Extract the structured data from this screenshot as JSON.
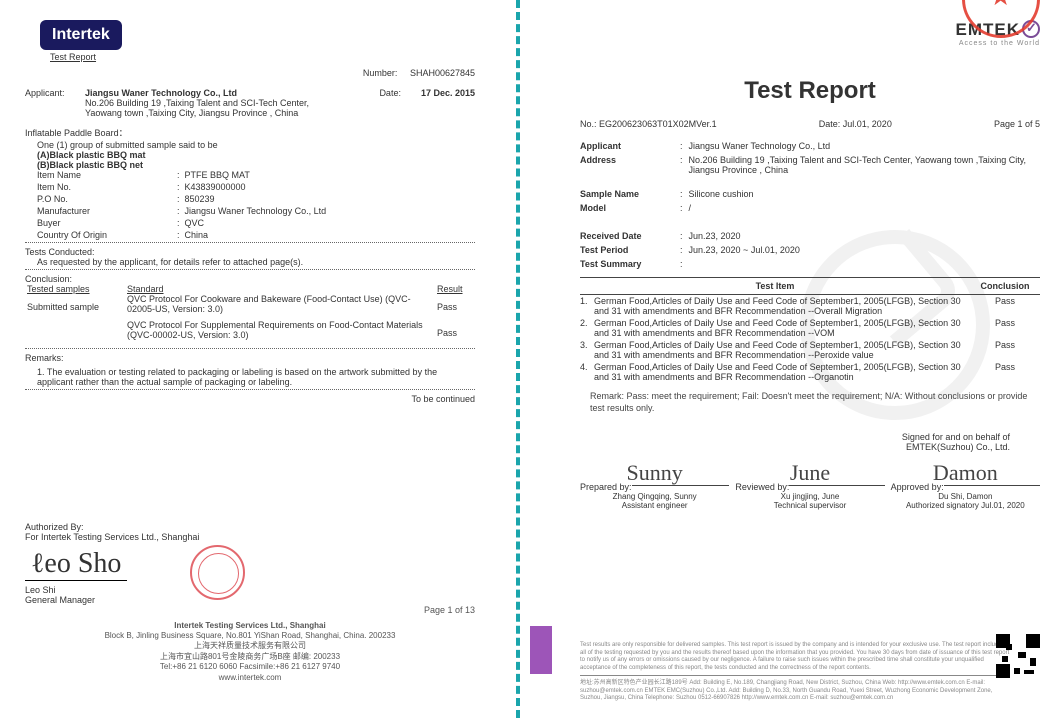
{
  "left": {
    "logo": "Intertek",
    "link": "Test Report",
    "number_lbl": "Number:",
    "number": "SHAH00627845",
    "applicant_lbl": "Applicant:",
    "applicant": "Jiangsu Waner Technology Co., Ltd",
    "addr1": "No.206 Building 19 ,Taixing Talent and SCI-Tech Center,",
    "addr2": "Yaowang town ,Taixing City, Jiangsu Province , China",
    "date_lbl": "Date:",
    "date": "17 Dec. 2015",
    "product": "Inflatable Paddle Board：",
    "desc": "One (1) group of submitted sample said to be",
    "descA": "(A)Black plastic BBQ mat",
    "descB": "(B)Black plastic BBQ net",
    "rows": [
      {
        "k": "Item Name",
        "v": "PTFE BBQ MAT"
      },
      {
        "k": "Item No.",
        "v": "K43839000000"
      },
      {
        "k": "P.O No.",
        "v": "850239"
      },
      {
        "k": "Manufacturer",
        "v": "Jiangsu Waner Technology Co., Ltd"
      },
      {
        "k": "Buyer",
        "v": "QVC"
      },
      {
        "k": "Country Of Origin",
        "v": "China"
      }
    ],
    "tests_hdr": "Tests Conducted:",
    "tests_line": "As requested by the applicant, for details refer to attached page(s).",
    "conc_hdr": "Conclusion:",
    "tbl": {
      "h1": "Tested samples",
      "h2": "Standard",
      "h3": "Result",
      "rows": [
        {
          "a": "Submitted sample",
          "b": "QVC Protocol For Cookware and Bakeware (Food-Contact Use) (QVC-02005-US, Version: 3.0)",
          "c": "Pass"
        },
        {
          "a": "",
          "b": "QVC Protocol For Supplemental Requirements on Food-Contact Materials (QVC-00002-US, Version: 3.0)",
          "c": "Pass"
        }
      ]
    },
    "remarks_hdr": "Remarks:",
    "remark1": "1.    The evaluation or testing related to packaging or labeling is based on the artwork submitted by the applicant rather than the actual sample of packaging or labeling.",
    "tbc": "To be continued",
    "auth_hdr": "Authorized By:",
    "auth_for": "For Intertek Testing Services Ltd., Shanghai",
    "sig_name": "Leo Shi",
    "sig_title": "General Manager",
    "page": "Page 1 of 13",
    "footer1": "Intertek Testing Services Ltd., Shanghai",
    "footer2": "Block B, Jinling Business Square, No.801 YiShan Road, Shanghai, China. 200233",
    "footer3": "上海天祥质量技术服务有限公司",
    "footer4": "上海市宜山路801号金陵商务广场B座   邮编: 200233",
    "footer5": "Tel:+86 21 6120 6060   Facsimile:+86 21 6127 9740",
    "footer6": "www.intertek.com"
  },
  "right": {
    "logo": "EMTEK",
    "sub": "Access to the World",
    "title": "Test Report",
    "no_lbl": "No.:",
    "no": "EG200623063T01X02MVer.1",
    "date_lbl": "Date:",
    "date": "Jul.01, 2020",
    "page": "Page 1 of 5",
    "fields": [
      {
        "k": "Applicant",
        "v": "Jiangsu Waner Technology Co., Ltd"
      },
      {
        "k": "Address",
        "v": "No.206 Building 19 ,Taixing Talent and SCI-Tech Center, Yaowang town ,Taixing City, Jiangsu Province , China"
      },
      {
        "k": "Sample Name",
        "v": "Silicone cushion"
      },
      {
        "k": "Model",
        "v": "/"
      },
      {
        "k": "Received Date",
        "v": "Jun.23, 2020"
      },
      {
        "k": "Test Period",
        "v": "Jun.23, 2020 ~ Jul.01, 2020"
      },
      {
        "k": "Test Summary",
        "v": ""
      }
    ],
    "item_hdr": "Test Item",
    "concl_hdr": "Conclusion",
    "items": [
      {
        "n": "1.",
        "t": "German Food,Articles of Daily Use and Feed Code of September1, 2005(LFGB), Section 30 and 31 with amendments and BFR Recommendation --Overall Migration",
        "c": "Pass"
      },
      {
        "n": "2.",
        "t": "German Food,Articles of Daily Use and Feed Code of September1, 2005(LFGB), Section 30 and 31 with amendments and BFR Recommendation --VOM",
        "c": "Pass"
      },
      {
        "n": "3.",
        "t": "German Food,Articles of Daily Use and Feed Code of September1, 2005(LFGB), Section 30 and 31 with amendments and BFR Recommendation --Peroxide value",
        "c": "Pass"
      },
      {
        "n": "4.",
        "t": "German Food,Articles of Daily Use and Feed Code of September1, 2005(LFGB), Section 30 and 31 with amendments and BFR Recommendation --Organotin",
        "c": "Pass"
      }
    ],
    "remark": "Remark: Pass: meet the requirement; Fail: Doesn't meet the requirement; N/A: Without conclusions or provide test results only.",
    "signed": "Signed for and on behalf of",
    "signed2": "EMTEK(Suzhou) Co., Ltd.",
    "sigs": [
      {
        "lbl": "Prepared by:",
        "scr": "Sunny",
        "name": "Zhang Qingqing, Sunny",
        "title": "Assistant engineer"
      },
      {
        "lbl": "Reviewed by:",
        "scr": "June",
        "name": "Xu jingjing, June",
        "title": "Technical supervisor"
      },
      {
        "lbl": "Approved by:",
        "scr": "Damon",
        "name": "Du Shi, Damon",
        "title": "Authorized signatory Jul.01, 2020"
      }
    ],
    "fine": "Test results are only responsible for delivered samples. This test report is issued by the company and is intended for your exclusive use. The test report includes all of the testing requested by you and the results thereof based upon the information that you provided. You have 30 days from date of issuance of this test report to notify us of any errors or omissions caused by our negligence. A failure to raise such issues within the prescribed time shall constitute your unqualified acceptance of the completeness of this report, the tests conducted and the correctness of the report contents.",
    "addr": "地址:苏州高新区特色产业园长江路189号    Add: Building E, No.189, Changjiang Road, New District, Suzhou, China    Web: http://www.emtek.com.cn    E-mail: suzhou@emtek.com.cn EMTEK EMC(Suzhou) Co.,Ltd.    Add: Building D, No.33, North Guandu Road, Yuexi Street, Wuzhong Economic Development Zone, Suzhou, Jiangsu, China    Telephone: Suzhou 0512-66907826 http://www.emtek.com.cn    E-mail: suzhou@emtek.com.cn"
  }
}
